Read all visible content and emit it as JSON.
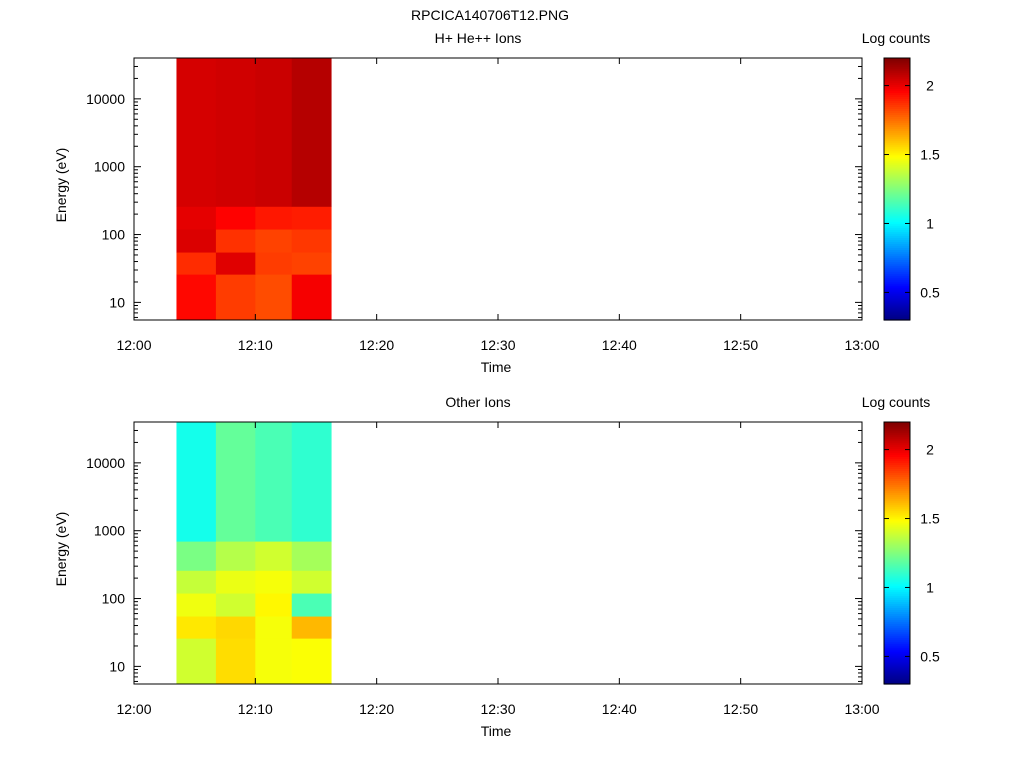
{
  "figure": {
    "title": "RPCICA140706T12.PNG"
  },
  "colorscale": {
    "stops": [
      "#00007f",
      "#0000ff",
      "#007fff",
      "#00ffff",
      "#7fff7f",
      "#ffff00",
      "#ff7f00",
      "#ff0000",
      "#7f0000"
    ],
    "range": [
      0.3,
      2.2
    ]
  },
  "chart_data": [
    {
      "type": "heatmap",
      "title": "H+ He++ Ions",
      "xlabel": "Time",
      "ylabel": "Energy (eV)",
      "colorbar_label": "Log counts",
      "yscale": "log",
      "xlim": [
        "12:00",
        "13:00"
      ],
      "ylim": [
        5.5,
        40000
      ],
      "x_ticks": [
        "12:00",
        "12:10",
        "12:20",
        "12:30",
        "12:40",
        "12:50",
        "13:00"
      ],
      "y_ticks": [
        "10",
        "100",
        "1000",
        "10000"
      ],
      "colorbar_ticks": [
        "0.5",
        "1",
        "1.5",
        "2"
      ],
      "time_bins": [
        "12:03:30",
        "12:06:45",
        "12:10:00",
        "12:13:00",
        "12:16:15"
      ],
      "energy_bins": [
        5.5,
        26,
        55,
        120,
        260,
        40000
      ],
      "values": [
        [
          1.95,
          1.85,
          1.82,
          1.98
        ],
        [
          1.88,
          2.02,
          1.85,
          1.84
        ],
        [
          2.03,
          1.87,
          1.84,
          1.86
        ],
        [
          2.01,
          1.96,
          1.92,
          1.91
        ],
        [
          2.04,
          2.05,
          2.06,
          2.1
        ]
      ]
    },
    {
      "type": "heatmap",
      "title": "Other Ions",
      "xlabel": "Time",
      "ylabel": "Energy (eV)",
      "colorbar_label": "Log counts",
      "yscale": "log",
      "xlim": [
        "12:00",
        "13:00"
      ],
      "ylim": [
        5.5,
        40000
      ],
      "x_ticks": [
        "12:00",
        "12:10",
        "12:20",
        "12:30",
        "12:40",
        "12:50",
        "13:00"
      ],
      "y_ticks": [
        "10",
        "100",
        "1000",
        "10000"
      ],
      "colorbar_ticks": [
        "0.5",
        "1",
        "1.5",
        "2"
      ],
      "time_bins": [
        "12:03:30",
        "12:06:45",
        "12:10:00",
        "12:13:00",
        "12:16:15"
      ],
      "energy_bins": [
        5.5,
        26,
        55,
        120,
        260,
        700,
        40000
      ],
      "values": [
        [
          1.4,
          1.55,
          1.47,
          1.48
        ],
        [
          1.53,
          1.56,
          1.47,
          1.62
        ],
        [
          1.46,
          1.4,
          1.5,
          1.15
        ],
        [
          1.38,
          1.45,
          1.47,
          1.4
        ],
        [
          1.24,
          1.35,
          1.4,
          1.32
        ],
        [
          1.05,
          1.2,
          1.15,
          1.1
        ]
      ]
    }
  ]
}
